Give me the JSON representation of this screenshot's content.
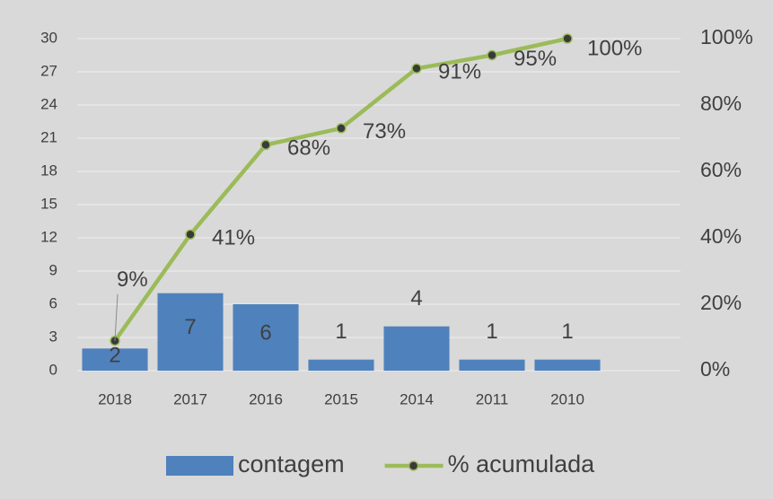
{
  "chart_data": {
    "type": "bar",
    "categories": [
      "2018",
      "2017",
      "2016",
      "2015",
      "2014",
      "2011",
      "2010",
      null
    ],
    "series": [
      {
        "name": "contagem",
        "type": "bar",
        "color": "#4f81bd",
        "values": [
          2,
          7,
          6,
          1,
          4,
          1,
          1,
          null
        ]
      },
      {
        "name": "% acumulada",
        "type": "line",
        "axis": "y2",
        "color": "#9bbb59",
        "marker_color": "#3a3a3a",
        "values": [
          9,
          41,
          68,
          73,
          91,
          95,
          100,
          null
        ],
        "value_labels": [
          "9%",
          "41%",
          "68%",
          "73%",
          "91%",
          "95%",
          "100%",
          null
        ]
      }
    ],
    "ylim": [
      0,
      30
    ],
    "yticks": [
      0,
      3,
      6,
      9,
      12,
      15,
      18,
      21,
      24,
      27,
      30
    ],
    "y2lim": [
      0,
      100
    ],
    "y2ticks": [
      {
        "value": 0,
        "label": "0%"
      },
      {
        "value": 20,
        "label": "20%"
      },
      {
        "value": 40,
        "label": "40%"
      },
      {
        "value": 60,
        "label": "60%"
      },
      {
        "value": 80,
        "label": "80%"
      },
      {
        "value": 100,
        "label": "100%"
      }
    ],
    "grid": true,
    "legend": "bottom"
  }
}
